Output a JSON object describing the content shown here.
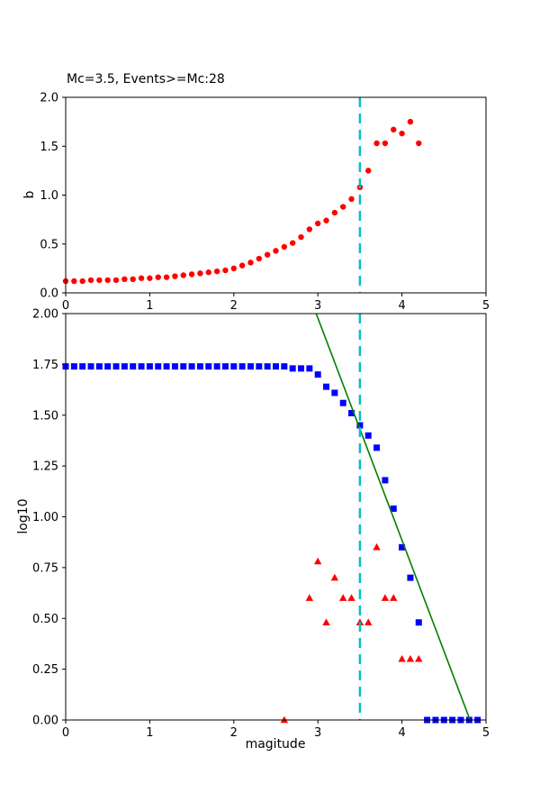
{
  "figure": {
    "background": "#ffffff"
  },
  "colors": {
    "red": "#ff0000",
    "blue": "#0000ff",
    "green": "#008000",
    "cyan": "#00bfbf",
    "axis": "#000000",
    "text": "#000000"
  },
  "chart_data": [
    {
      "type": "scatter",
      "title": "Mc=3.5, Events>=Mc:28",
      "xlabel": "",
      "ylabel": "b",
      "xlim": [
        0,
        5
      ],
      "ylim": [
        0,
        2
      ],
      "grid": false,
      "legend": "none",
      "xticks": [
        {
          "v": 0,
          "label": "0"
        },
        {
          "v": 1,
          "label": "1"
        },
        {
          "v": 2,
          "label": "2"
        },
        {
          "v": 3,
          "label": "3"
        },
        {
          "v": 4,
          "label": "4"
        },
        {
          "v": 5,
          "label": "5"
        }
      ],
      "yticks": [
        {
          "v": 0.0,
          "label": "0.0"
        },
        {
          "v": 0.5,
          "label": "0.5"
        },
        {
          "v": 1.0,
          "label": "1.0"
        },
        {
          "v": 1.5,
          "label": "1.5"
        },
        {
          "v": 2.0,
          "label": "2.0"
        }
      ],
      "series": [
        {
          "name": "b-value-dots",
          "kind": "scatter",
          "marker": "circle",
          "color": "red",
          "x": [
            0.0,
            0.1,
            0.2,
            0.3,
            0.4,
            0.5,
            0.6,
            0.7,
            0.8,
            0.9,
            1.0,
            1.1,
            1.2,
            1.3,
            1.4,
            1.5,
            1.6,
            1.7,
            1.8,
            1.9,
            2.0,
            2.1,
            2.2,
            2.3,
            2.4,
            2.5,
            2.6,
            2.7,
            2.8,
            2.9,
            3.0,
            3.1,
            3.2,
            3.3,
            3.4,
            3.5,
            3.6,
            3.7,
            3.8,
            3.9,
            4.0,
            4.1,
            4.2
          ],
          "y": [
            0.12,
            0.12,
            0.12,
            0.13,
            0.13,
            0.13,
            0.13,
            0.14,
            0.14,
            0.15,
            0.15,
            0.16,
            0.16,
            0.17,
            0.18,
            0.19,
            0.2,
            0.21,
            0.22,
            0.23,
            0.25,
            0.28,
            0.31,
            0.35,
            0.39,
            0.43,
            0.47,
            0.51,
            0.57,
            0.65,
            0.71,
            0.74,
            0.82,
            0.88,
            0.96,
            1.08,
            1.25,
            1.53,
            1.53,
            1.67,
            1.63,
            1.75,
            1.53
          ]
        },
        {
          "name": "mc-cutoff-vline",
          "kind": "vline",
          "x": 3.5,
          "color": "cyan",
          "dashed": true
        }
      ]
    },
    {
      "type": "scatter",
      "title": "",
      "xlabel": "magitude",
      "ylabel": "log10",
      "xlim": [
        0,
        5
      ],
      "ylim": [
        0,
        2
      ],
      "grid": false,
      "legend": "none",
      "xticks": [
        {
          "v": 0,
          "label": "0"
        },
        {
          "v": 1,
          "label": "1"
        },
        {
          "v": 2,
          "label": "2"
        },
        {
          "v": 3,
          "label": "3"
        },
        {
          "v": 4,
          "label": "4"
        },
        {
          "v": 5,
          "label": "5"
        }
      ],
      "yticks": [
        {
          "v": 0.0,
          "label": "0.00"
        },
        {
          "v": 0.25,
          "label": "0.25"
        },
        {
          "v": 0.5,
          "label": "0.50"
        },
        {
          "v": 0.75,
          "label": "0.75"
        },
        {
          "v": 1.0,
          "label": "1.00"
        },
        {
          "v": 1.25,
          "label": "1.25"
        },
        {
          "v": 1.5,
          "label": "1.50"
        },
        {
          "v": 1.75,
          "label": "1.75"
        },
        {
          "v": 2.0,
          "label": "2.00"
        }
      ],
      "series": [
        {
          "name": "cumulative-event-counts",
          "kind": "scatter",
          "marker": "square",
          "color": "blue",
          "x": [
            0.0,
            0.1,
            0.2,
            0.3,
            0.4,
            0.5,
            0.6,
            0.7,
            0.8,
            0.9,
            1.0,
            1.1,
            1.2,
            1.3,
            1.4,
            1.5,
            1.6,
            1.7,
            1.8,
            1.9,
            2.0,
            2.1,
            2.2,
            2.3,
            2.4,
            2.5,
            2.6,
            2.7,
            2.8,
            2.9,
            3.0,
            3.1,
            3.2,
            3.3,
            3.4,
            3.5,
            3.6,
            3.7,
            3.8,
            3.9,
            4.0,
            4.1,
            4.2,
            4.3,
            4.4,
            4.5,
            4.6,
            4.7,
            4.8,
            4.9
          ],
          "y": [
            1.74,
            1.74,
            1.74,
            1.74,
            1.74,
            1.74,
            1.74,
            1.74,
            1.74,
            1.74,
            1.74,
            1.74,
            1.74,
            1.74,
            1.74,
            1.74,
            1.74,
            1.74,
            1.74,
            1.74,
            1.74,
            1.74,
            1.74,
            1.74,
            1.74,
            1.74,
            1.74,
            1.73,
            1.73,
            1.73,
            1.7,
            1.64,
            1.61,
            1.56,
            1.51,
            1.45,
            1.4,
            1.34,
            1.18,
            1.04,
            0.85,
            0.7,
            0.48,
            0.0,
            0.0,
            0.0,
            0.0,
            0.0,
            0.0,
            0.0
          ]
        },
        {
          "name": "binned-event-counts",
          "kind": "scatter",
          "marker": "triangle",
          "color": "red",
          "x": [
            2.6,
            2.9,
            3.0,
            3.1,
            3.2,
            3.3,
            3.4,
            3.5,
            3.6,
            3.7,
            3.8,
            3.9,
            4.0,
            4.1,
            4.2
          ],
          "y": [
            0.0,
            0.6,
            0.78,
            0.48,
            0.7,
            0.6,
            0.6,
            0.48,
            0.48,
            0.85,
            0.6,
            0.6,
            0.3,
            0.3,
            0.3
          ]
        },
        {
          "name": "gr-fit-line",
          "kind": "line",
          "color": "green",
          "x": [
            2.98,
            4.81
          ],
          "y": [
            2.0,
            0.0
          ]
        },
        {
          "name": "mc-cutoff-vline",
          "kind": "vline",
          "x": 3.5,
          "color": "cyan",
          "dashed": true
        }
      ]
    }
  ]
}
